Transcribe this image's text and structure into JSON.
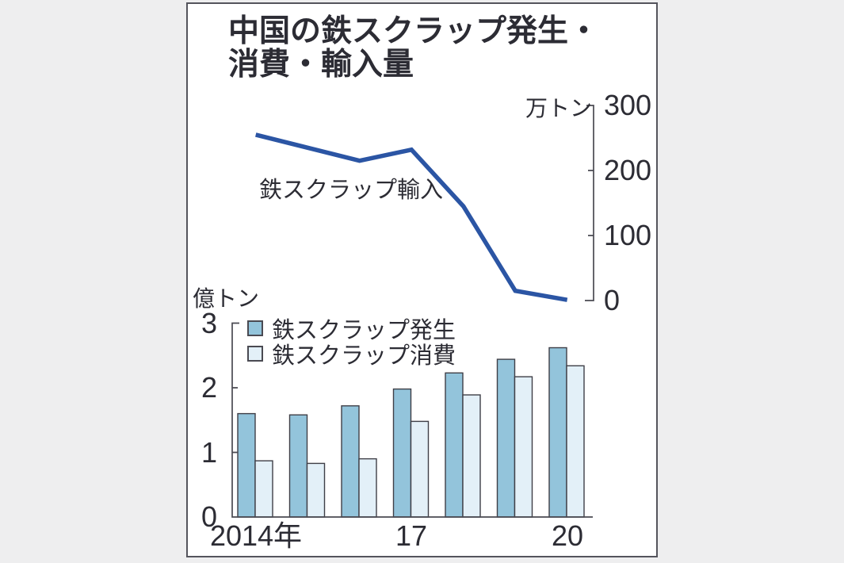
{
  "title": {
    "line1": "中国の鉄スクラップ発生・",
    "line2": "消費・輸入量"
  },
  "colors": {
    "page_bg": "#eeeeef",
    "card_bg": "#ffffff",
    "card_border": "#54545c",
    "axis": "#4a4a52",
    "text": "#2c2c34",
    "line": "#2b55a4",
    "bar_generation": "#93c4db",
    "bar_consumption": "#e3f0f8",
    "bar_border": "#3f3f47"
  },
  "chart_data": [
    {
      "type": "line",
      "name": "steel-scrap-imports",
      "series_label": "鉄スクラップ輸入",
      "unit_label": "万トン",
      "x": [
        2014,
        2015,
        2016,
        2017,
        2018,
        2019,
        2020
      ],
      "values": [
        255,
        235,
        215,
        232,
        145,
        15,
        1
      ],
      "ylim": [
        0,
        300
      ],
      "yticks": [
        300,
        200,
        100,
        0
      ],
      "axis_side": "right",
      "grid": false,
      "line_color": "#2b55a4"
    },
    {
      "type": "bar",
      "name": "steel-scrap-generation-consumption",
      "unit_label": "億トン",
      "categories": [
        2014,
        2015,
        2016,
        2017,
        2018,
        2019,
        2020
      ],
      "x_tick_labels": [
        {
          "index": 0,
          "label": "2014年"
        },
        {
          "index": 3,
          "label": "17"
        },
        {
          "index": 6,
          "label": "20"
        }
      ],
      "series": [
        {
          "name": "鉄スクラップ発生",
          "color": "#93c4db",
          "values": [
            1.6,
            1.58,
            1.72,
            1.98,
            2.23,
            2.44,
            2.62
          ]
        },
        {
          "name": "鉄スクラップ消費",
          "color": "#e3f0f8",
          "values": [
            0.87,
            0.83,
            0.9,
            1.48,
            1.89,
            2.17,
            2.34
          ]
        }
      ],
      "ylim": [
        0,
        3
      ],
      "yticks": [
        3,
        2,
        1,
        0
      ],
      "axis_side": "left",
      "grid": false,
      "legend_position": "top-left-inside"
    }
  ]
}
